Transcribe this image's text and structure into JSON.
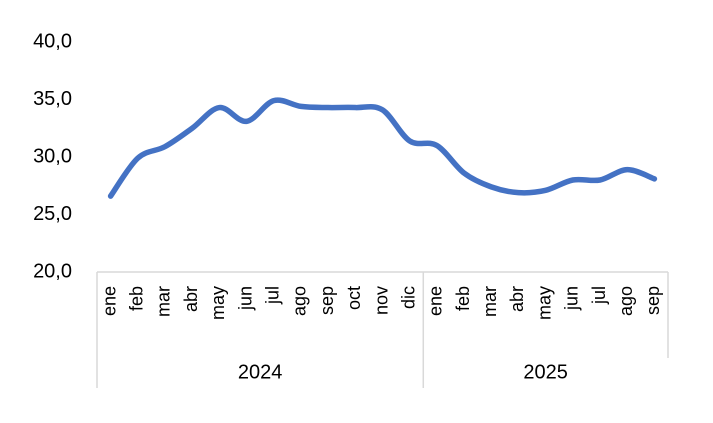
{
  "chart_data": {
    "type": "line",
    "category_groups": [
      {
        "label": "2024",
        "categories": [
          "ene",
          "feb",
          "mar",
          "abr",
          "may",
          "jun",
          "jul",
          "ago",
          "sep",
          "oct",
          "nov",
          "dic"
        ]
      },
      {
        "label": "2025",
        "categories": [
          "ene",
          "feb",
          "mar",
          "abr",
          "may",
          "jun",
          "jul",
          "ago",
          "sep"
        ]
      }
    ],
    "values": [
      26.6,
      29.9,
      30.9,
      32.5,
      34.3,
      33.1,
      34.9,
      34.4,
      34.3,
      34.3,
      34.1,
      31.4,
      31.0,
      28.6,
      27.4,
      26.9,
      27.1,
      28.0,
      28.0,
      28.9,
      28.1
    ],
    "color": "#4472c4",
    "ylim": [
      20,
      40
    ],
    "yticks": [
      {
        "value": 20,
        "label": "20,0"
      },
      {
        "value": 25,
        "label": "25,0"
      },
      {
        "value": 30,
        "label": "30,0"
      },
      {
        "value": 35,
        "label": "35,0"
      },
      {
        "value": 40,
        "label": "40,0"
      }
    ],
    "grid": false
  }
}
